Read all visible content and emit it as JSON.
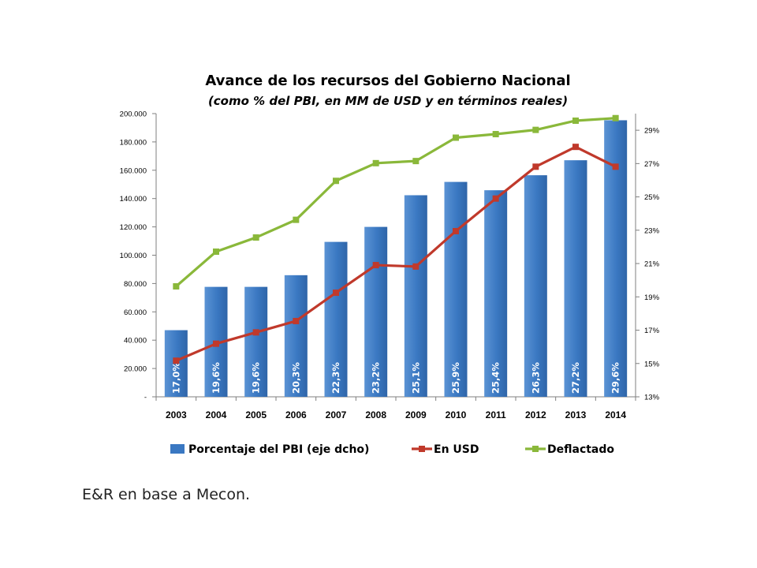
{
  "chart_data": {
    "type": "bar",
    "title": "Avance de los recursos del Gobierno Nacional",
    "subtitle": "(como % del PBI, en MM de USD y en términos reales)",
    "categories": [
      "2003",
      "2004",
      "2005",
      "2006",
      "2007",
      "2008",
      "2009",
      "2010",
      "2011",
      "2012",
      "2013",
      "2014"
    ],
    "left_axis": {
      "min": 0,
      "max": 200000,
      "ticks": [
        "-",
        "20.000",
        "40.000",
        "60.000",
        "80.000",
        "100.000",
        "120.000",
        "140.000",
        "160.000",
        "180.000",
        "200.000"
      ]
    },
    "right_axis": {
      "min": 13,
      "max": 30,
      "ticks": [
        "13%",
        "15%",
        "17%",
        "19%",
        "21%",
        "23%",
        "25%",
        "27%",
        "29%"
      ]
    },
    "series": [
      {
        "name": "Porcentaje del PBI (eje dcho)",
        "type": "bar",
        "axis": "right",
        "color": "#3a78c2",
        "values": [
          17.0,
          19.6,
          19.6,
          20.3,
          22.3,
          23.2,
          25.1,
          25.9,
          25.4,
          26.3,
          27.2,
          29.6
        ],
        "labels": [
          "17,0%",
          "19,6%",
          "19,6%",
          "20,3%",
          "22,3%",
          "23,2%",
          "25,1%",
          "25,9%",
          "25,4%",
          "26,3%",
          "27,2%",
          "29,6%"
        ]
      },
      {
        "name": "En USD",
        "type": "line",
        "axis": "left",
        "color": "#c0392b",
        "values": [
          25500,
          37500,
          45500,
          53500,
          73500,
          93000,
          92000,
          117000,
          140000,
          162500,
          176500,
          162500
        ]
      },
      {
        "name": "Deflactado",
        "type": "line",
        "axis": "left",
        "color": "#8ab83a",
        "values": [
          78000,
          102500,
          112500,
          125000,
          152500,
          165000,
          166500,
          183000,
          185500,
          188500,
          195000,
          196800
        ]
      }
    ],
    "legend_position": "bottom"
  },
  "source_text": "E&R en base a Mecon."
}
